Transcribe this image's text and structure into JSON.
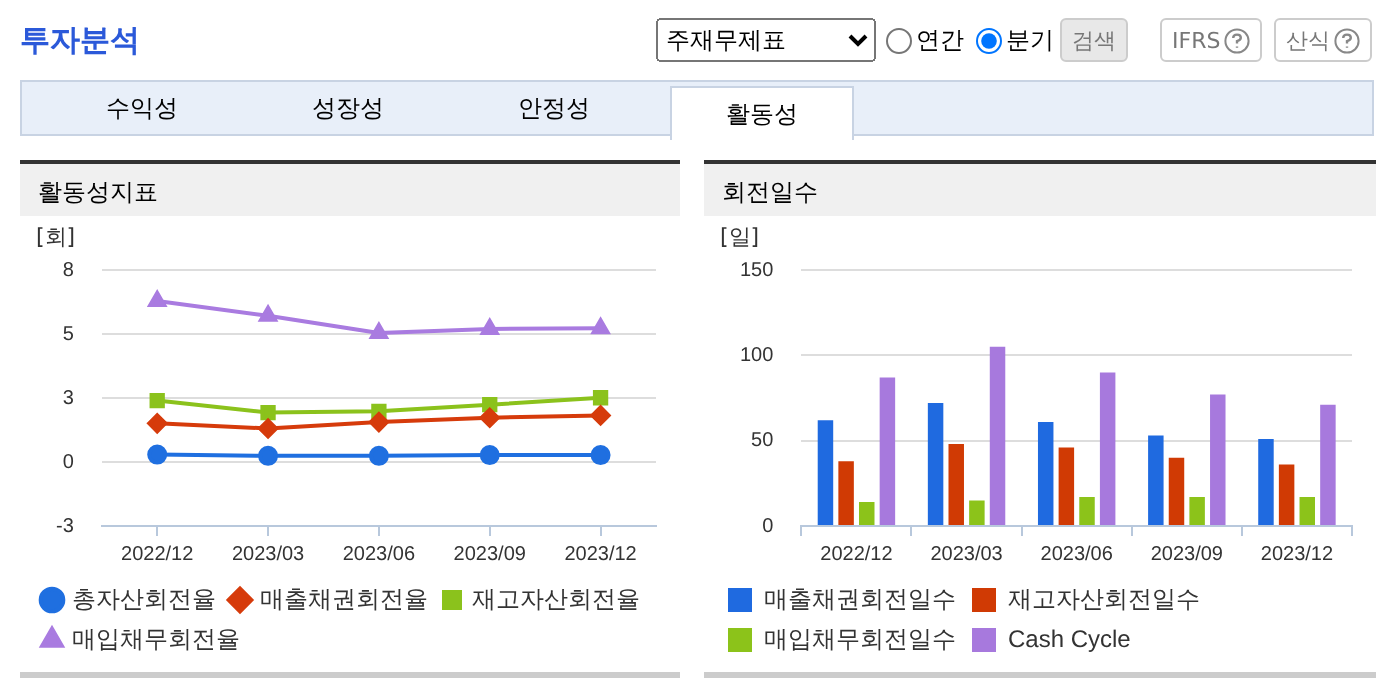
{
  "chart_data": [
    {
      "type": "other",
      "title": "투자분석",
      "annotations": [
        "주재무제표",
        "연간",
        "분기",
        "검색",
        "IFRS",
        "산식",
        "수익성",
        "성장성",
        "안정성",
        "활동성"
      ]
    },
    {
      "type": "line",
      "title": "활동성지표",
      "ylabel": "[회]",
      "categories": [
        "2022/12",
        "2023/03",
        "2023/06",
        "2023/09",
        "2023/12"
      ],
      "series": [
        {
          "name": "총자산회전율",
          "color": "#1f6fe0",
          "marker": "circle",
          "values": [
            0.29,
            0.24,
            0.24,
            0.27,
            0.27
          ]
        },
        {
          "name": "매출채권회전율",
          "color": "#d63b0b",
          "marker": "diamond",
          "values": [
            1.51,
            1.31,
            1.56,
            1.73,
            1.82
          ]
        },
        {
          "name": "재고자산회전율",
          "color": "#8bc21c",
          "marker": "square",
          "values": [
            2.4,
            1.93,
            1.98,
            2.24,
            2.51
          ]
        },
        {
          "name": "매입채무회전율",
          "color": "#a97be0",
          "marker": "triangle",
          "values": [
            6.29,
            5.71,
            5.04,
            5.2,
            5.22
          ]
        }
      ],
      "ylim": [
        -2.5,
        7.5
      ],
      "yticks": [
        {
          "value": -2.5,
          "label": "-3"
        },
        {
          "value": 0,
          "label": "0"
        },
        {
          "value": 2.5,
          "label": "3"
        },
        {
          "value": 5,
          "label": "5"
        },
        {
          "value": 7.5,
          "label": "8"
        }
      ],
      "grid": "y",
      "legend": "bottom"
    },
    {
      "type": "bar",
      "title": "회전일수",
      "ylabel": "[일]",
      "categories": [
        "2022/12",
        "2023/03",
        "2023/06",
        "2023/09",
        "2023/12"
      ],
      "series": [
        {
          "name": "매출채권회전일수",
          "color": "#1f6ae0",
          "values": [
            62,
            72,
            61,
            53,
            51
          ]
        },
        {
          "name": "재고자산회전일수",
          "color": "#d03a04",
          "values": [
            38,
            48,
            46,
            40,
            36
          ]
        },
        {
          "name": "매입채무회전일수",
          "color": "#8cc31a",
          "values": [
            14,
            15,
            17,
            17,
            17
          ]
        },
        {
          "name": "Cash Cycle",
          "color": "#a779dd",
          "values": [
            87,
            105,
            90,
            77,
            71
          ]
        }
      ],
      "ylim": [
        0,
        150
      ],
      "yticks": [
        0,
        50,
        100,
        150
      ],
      "grid": "y",
      "legend": "bottom"
    }
  ]
}
